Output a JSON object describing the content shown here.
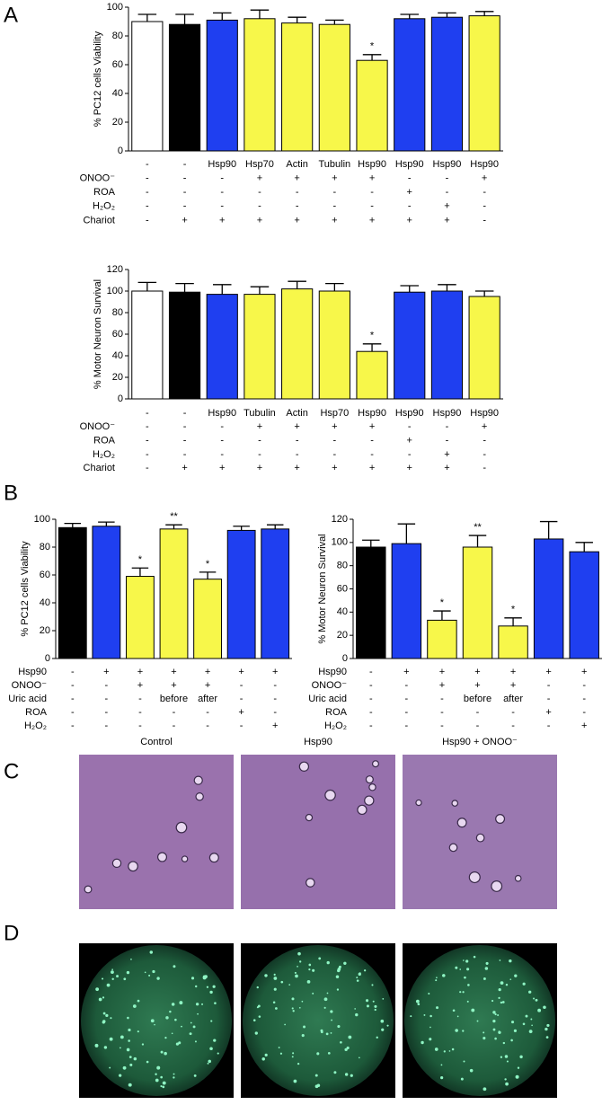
{
  "panels": [
    "A",
    "B",
    "C",
    "D"
  ],
  "chart_data": [
    {
      "type": "bar",
      "ylabel": "% PC12 cells Viability",
      "categories": [
        "-",
        "-",
        "Hsp90",
        "Hsp70",
        "Actin",
        "Tubulin",
        "Hsp90",
        "Hsp90",
        "Hsp90",
        "Hsp90"
      ],
      "values": [
        90,
        88,
        91,
        92,
        89,
        88,
        63,
        92,
        93,
        94
      ],
      "errors": [
        5,
        7,
        5,
        6,
        4,
        3,
        4,
        3,
        3,
        3
      ],
      "colors": [
        "#ffffff",
        "#000000",
        "#1f3ff0",
        "#f7f74a",
        "#f7f74a",
        "#f7f74a",
        "#f7f74a",
        "#1f3ff0",
        "#1f3ff0",
        "#f7f74a"
      ],
      "significance": [
        null,
        null,
        null,
        null,
        null,
        null,
        "*",
        null,
        null,
        null
      ],
      "ylim": [
        0,
        100
      ],
      "yticks": [
        0,
        20,
        40,
        60,
        80,
        100
      ],
      "conditions": [
        {
          "label": "ONOO⁻",
          "values": [
            "-",
            "-",
            "-",
            "+",
            "+",
            "+",
            "+",
            "-",
            "-",
            "+"
          ]
        },
        {
          "label": "ROA",
          "values": [
            "-",
            "-",
            "-",
            "-",
            "-",
            "-",
            "-",
            "+",
            "-",
            "-"
          ]
        },
        {
          "label": "H₂O₂",
          "values": [
            "-",
            "-",
            "-",
            "-",
            "-",
            "-",
            "-",
            "-",
            "+",
            "-"
          ]
        },
        {
          "label": "Chariot",
          "values": [
            "-",
            "+",
            "+",
            "+",
            "+",
            "+",
            "+",
            "+",
            "+",
            "-"
          ]
        }
      ]
    },
    {
      "type": "bar",
      "ylabel": "% Motor Neuron Survival",
      "categories": [
        "-",
        "-",
        "Hsp90",
        "Tubulin",
        "Actin",
        "Hsp70",
        "Hsp90",
        "Hsp90",
        "Hsp90",
        "Hsp90"
      ],
      "values": [
        100,
        99,
        97,
        97,
        102,
        100,
        44,
        99,
        100,
        95
      ],
      "errors": [
        8,
        8,
        9,
        7,
        7,
        7,
        7,
        6,
        6,
        5
      ],
      "colors": [
        "#ffffff",
        "#000000",
        "#1f3ff0",
        "#f7f74a",
        "#f7f74a",
        "#f7f74a",
        "#f7f74a",
        "#1f3ff0",
        "#1f3ff0",
        "#f7f74a"
      ],
      "significance": [
        null,
        null,
        null,
        null,
        null,
        null,
        "*",
        null,
        null,
        null
      ],
      "ylim": [
        0,
        120
      ],
      "yticks": [
        0,
        20,
        40,
        60,
        80,
        100,
        120
      ],
      "conditions": [
        {
          "label": "ONOO⁻",
          "values": [
            "-",
            "-",
            "-",
            "+",
            "+",
            "+",
            "+",
            "-",
            "-",
            "+"
          ]
        },
        {
          "label": "ROA",
          "values": [
            "-",
            "-",
            "-",
            "-",
            "-",
            "-",
            "-",
            "+",
            "-",
            "-"
          ]
        },
        {
          "label": "H₂O₂",
          "values": [
            "-",
            "-",
            "-",
            "-",
            "-",
            "-",
            "-",
            "-",
            "+",
            "-"
          ]
        },
        {
          "label": "Chariot",
          "values": [
            "-",
            "+",
            "+",
            "+",
            "+",
            "+",
            "+",
            "+",
            "+",
            "-"
          ]
        }
      ]
    },
    {
      "type": "bar",
      "ylabel": "% PC12 cells Viability",
      "values": [
        94,
        95,
        59,
        93,
        57,
        92,
        93
      ],
      "errors": [
        3,
        3,
        6,
        3,
        5,
        3,
        3
      ],
      "colors": [
        "#000000",
        "#1f3ff0",
        "#f7f74a",
        "#f7f74a",
        "#f7f74a",
        "#1f3ff0",
        "#1f3ff0"
      ],
      "significance": [
        null,
        null,
        "*",
        "**",
        "*",
        null,
        null
      ],
      "ylim": [
        0,
        100
      ],
      "yticks": [
        0,
        20,
        40,
        60,
        80,
        100
      ],
      "conditions": [
        {
          "label": "Hsp90",
          "values": [
            "-",
            "+",
            "+",
            "+",
            "+",
            "+",
            "+"
          ]
        },
        {
          "label": "ONOO⁻",
          "values": [
            "-",
            "-",
            "+",
            "+",
            "+",
            "-",
            "-"
          ]
        },
        {
          "label": "Uric acid",
          "values": [
            "-",
            "-",
            "-",
            "before",
            "after",
            "-",
            "-"
          ]
        },
        {
          "label": "ROA",
          "values": [
            "-",
            "-",
            "-",
            "-",
            "-",
            "+",
            "-"
          ]
        },
        {
          "label": "H₂O₂",
          "values": [
            "-",
            "-",
            "-",
            "-",
            "-",
            "-",
            "+"
          ]
        }
      ]
    },
    {
      "type": "bar",
      "ylabel": "% Motor Neuron Survival",
      "values": [
        96,
        99,
        33,
        96,
        28,
        103,
        92
      ],
      "errors": [
        6,
        17,
        8,
        10,
        7,
        15,
        8
      ],
      "colors": [
        "#000000",
        "#1f3ff0",
        "#f7f74a",
        "#f7f74a",
        "#f7f74a",
        "#1f3ff0",
        "#1f3ff0"
      ],
      "significance": [
        null,
        null,
        "*",
        "**",
        "*",
        null,
        null
      ],
      "ylim": [
        0,
        120
      ],
      "yticks": [
        0,
        20,
        40,
        60,
        80,
        100,
        120
      ],
      "conditions": [
        {
          "label": "Hsp90",
          "values": [
            "-",
            "+",
            "+",
            "+",
            "+",
            "+",
            "+"
          ]
        },
        {
          "label": "ONOO⁻",
          "values": [
            "-",
            "-",
            "+",
            "+",
            "+",
            "-",
            "-"
          ]
        },
        {
          "label": "Uric acid",
          "values": [
            "-",
            "-",
            "-",
            "before",
            "after",
            "-",
            "-"
          ]
        },
        {
          "label": "ROA",
          "values": [
            "-",
            "-",
            "-",
            "-",
            "-",
            "+",
            "-"
          ]
        },
        {
          "label": "H₂O₂",
          "values": [
            "-",
            "-",
            "-",
            "-",
            "-",
            "-",
            "+"
          ]
        }
      ]
    }
  ],
  "images": {
    "titles": [
      "Control",
      "Hsp90",
      "Hsp90 + ONOO⁻"
    ]
  }
}
